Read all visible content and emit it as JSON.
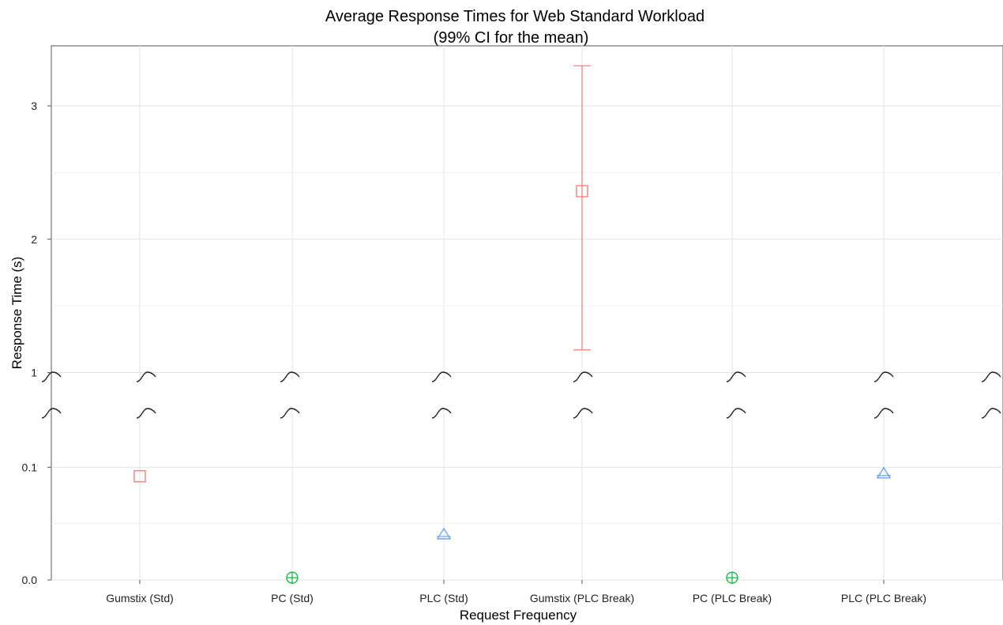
{
  "chart_data": {
    "type": "scatter",
    "title": "Average Response Times for Web Standard Workload",
    "subtitle": "(99% CI for the mean)",
    "xlabel": "Request Frequency",
    "ylabel": "Response Time (s)",
    "categories": [
      "Gumstix (Std)",
      "PC (Std)",
      "PLC (Std)",
      "Gumstix (PLC Break)",
      "PC (PLC Break)",
      "PLC (PLC Break)"
    ],
    "broken_y_axis": true,
    "lower_panel": {
      "ylim": [
        0.0,
        0.15
      ],
      "ticks": [
        "0.0",
        "0.1"
      ],
      "tick_values": [
        0.0,
        0.1
      ]
    },
    "upper_panel": {
      "ylim": [
        0.95,
        3.45
      ],
      "ticks": [
        "1",
        "2",
        "3"
      ],
      "tick_values": [
        1,
        2,
        3
      ]
    },
    "grid": true,
    "points": [
      {
        "category": "Gumstix (Std)",
        "value": 0.092,
        "shape": "square",
        "color": "#F8766D"
      },
      {
        "category": "PC (Std)",
        "value": 0.002,
        "shape": "circle-plus",
        "color": "#00BA38"
      },
      {
        "category": "PLC (Std)",
        "value": 0.04,
        "shape": "triangle",
        "color": "#619CFF"
      },
      {
        "category": "Gumstix (PLC Break)",
        "value": 2.36,
        "ci_low": 1.17,
        "ci_high": 3.3,
        "shape": "square",
        "color": "#F8766D"
      },
      {
        "category": "PC (PLC Break)",
        "value": 0.002,
        "shape": "circle-plus",
        "color": "#00BA38"
      },
      {
        "category": "PLC (PLC Break)",
        "value": 0.094,
        "shape": "triangle",
        "color": "#619CFF"
      }
    ]
  }
}
